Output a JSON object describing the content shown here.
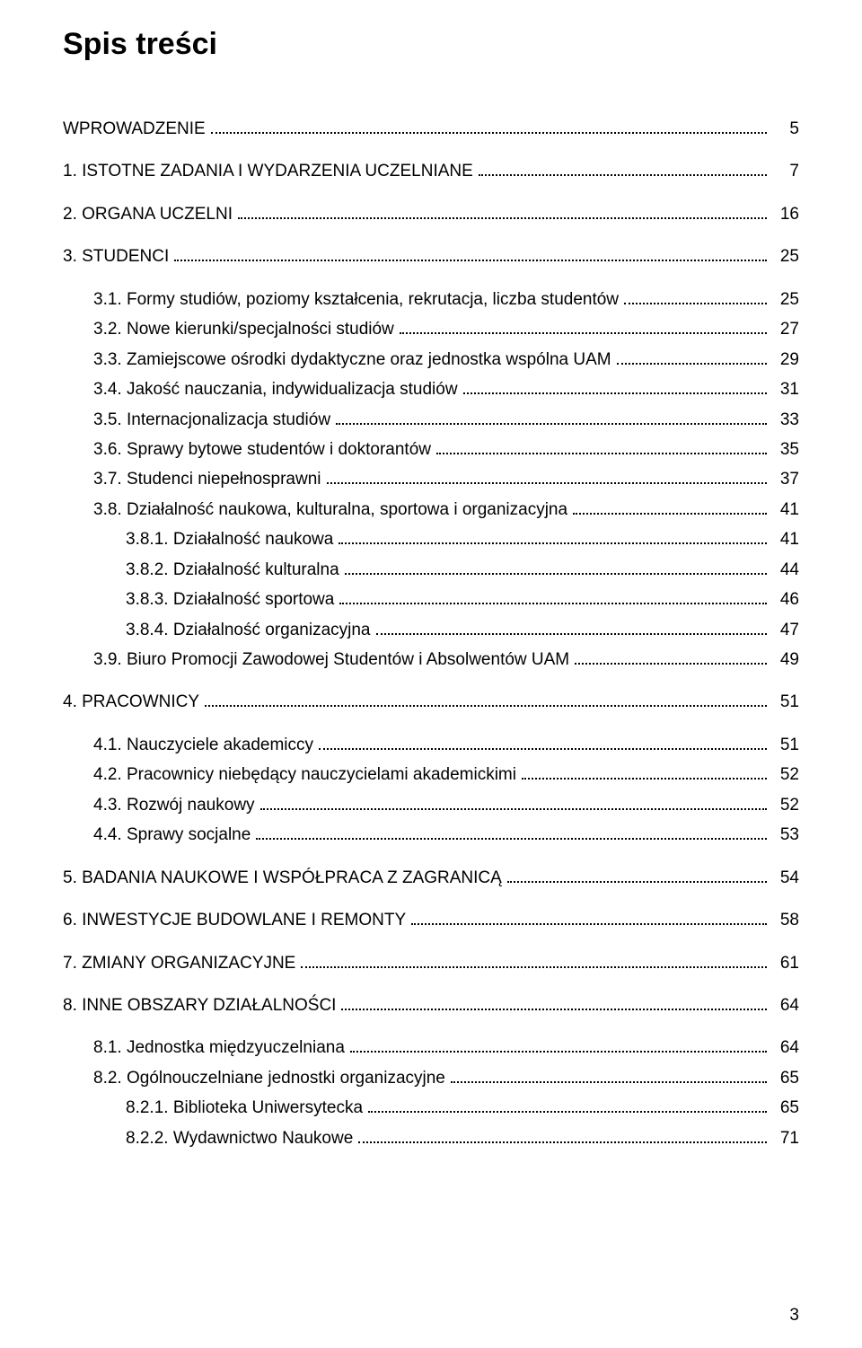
{
  "title": "Spis treści",
  "page_number": "3",
  "toc": [
    {
      "label": "WPROWADZENIE",
      "page": "5",
      "indent": 0,
      "topgap": false
    },
    {
      "label": "1. ISTOTNE ZADANIA  I WYDARZENIA UCZELNIANE",
      "page": "7",
      "indent": 0,
      "topgap": true
    },
    {
      "label": "2. ORGANA UCZELNI",
      "page": "16",
      "indent": 0,
      "topgap": true
    },
    {
      "label": "3. STUDENCI",
      "page": "25",
      "indent": 0,
      "topgap": true
    },
    {
      "label": "3.1. Formy studiów, poziomy kształcenia, rekrutacja, liczba studentów",
      "page": "25",
      "indent": 1,
      "topgap": true
    },
    {
      "label": "3.2. Nowe kierunki/specjalności studiów",
      "page": "27",
      "indent": 1,
      "topgap": false
    },
    {
      "label": "3.3. Zamiejscowe ośrodki dydaktyczne  oraz jednostka wspólna UAM",
      "page": "29",
      "indent": 1,
      "topgap": false
    },
    {
      "label": "3.4. Jakość nauczania, indywidualizacja studiów",
      "page": "31",
      "indent": 1,
      "topgap": false
    },
    {
      "label": "3.5. Internacjonalizacja studiów",
      "page": "33",
      "indent": 1,
      "topgap": false
    },
    {
      "label": "3.6. Sprawy bytowe studentów i doktorantów",
      "page": "35",
      "indent": 1,
      "topgap": false
    },
    {
      "label": "3.7. Studenci niepełnosprawni",
      "page": "37",
      "indent": 1,
      "topgap": false
    },
    {
      "label": "3.8. Działalność naukowa, kulturalna,  sportowa i organizacyjna",
      "page": "41",
      "indent": 1,
      "topgap": false
    },
    {
      "label": "3.8.1. Działalność naukowa",
      "page": "41",
      "indent": 2,
      "topgap": false
    },
    {
      "label": "3.8.2. Działalność kulturalna",
      "page": "44",
      "indent": 2,
      "topgap": false
    },
    {
      "label": "3.8.3. Działalność sportowa",
      "page": "46",
      "indent": 2,
      "topgap": false
    },
    {
      "label": "3.8.4. Działalność organizacyjna",
      "page": "47",
      "indent": 2,
      "topgap": false
    },
    {
      "label": "3.9. Biuro Promocji Zawodowej Studentów  i Absolwentów UAM",
      "page": "49",
      "indent": 1,
      "topgap": false
    },
    {
      "label": "4. PRACOWNICY",
      "page": "51",
      "indent": 0,
      "topgap": true
    },
    {
      "label": "4.1. Nauczyciele akademiccy",
      "page": "51",
      "indent": 1,
      "topgap": true
    },
    {
      "label": "4.2. Pracownicy niebędący nauczycielami akademickimi",
      "page": "52",
      "indent": 1,
      "topgap": false
    },
    {
      "label": "4.3. Rozwój naukowy",
      "page": "52",
      "indent": 1,
      "topgap": false
    },
    {
      "label": "4.4. Sprawy socjalne",
      "page": "53",
      "indent": 1,
      "topgap": false
    },
    {
      "label": "5. BADANIA NAUKOWE  I WSPÓŁPRACA Z ZAGRANICĄ",
      "page": "54",
      "indent": 0,
      "topgap": true
    },
    {
      "label": "6. INWESTYCJE BUDOWLANE I REMONTY",
      "page": "58",
      "indent": 0,
      "topgap": true
    },
    {
      "label": "7. ZMIANY ORGANIZACYJNE",
      "page": "61",
      "indent": 0,
      "topgap": true
    },
    {
      "label": "8. INNE OBSZARY DZIAŁALNOŚCI",
      "page": "64",
      "indent": 0,
      "topgap": true
    },
    {
      "label": "8.1. Jednostka międzyuczelniana",
      "page": "64",
      "indent": 1,
      "topgap": true
    },
    {
      "label": "8.2. Ogólnouczelniane jednostki organizacyjne",
      "page": "65",
      "indent": 1,
      "topgap": false
    },
    {
      "label": "8.2.1. Biblioteka Uniwersytecka",
      "page": "65",
      "indent": 2,
      "topgap": false
    },
    {
      "label": "8.2.2. Wydawnictwo Naukowe",
      "page": "71",
      "indent": 2,
      "topgap": false
    }
  ]
}
